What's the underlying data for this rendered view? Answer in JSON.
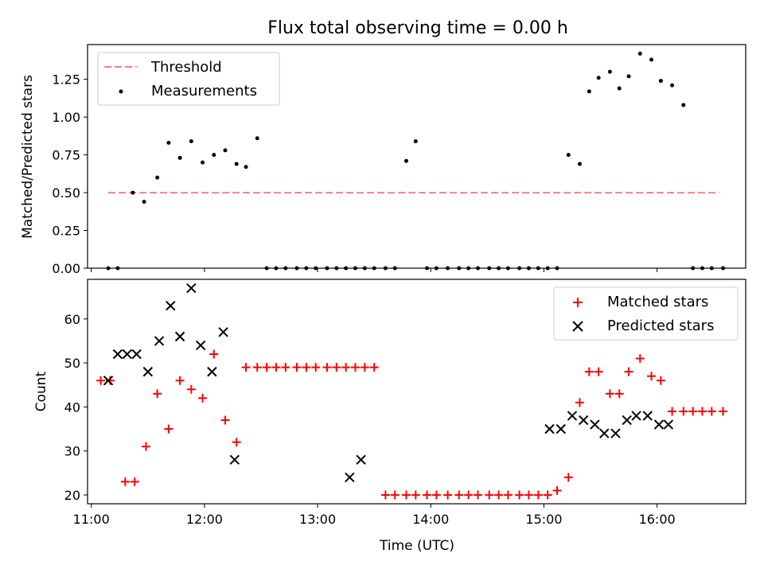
{
  "title": "Flux total observing time = 0.00 h",
  "chart_data": [
    {
      "type": "scatter",
      "ylabel": "Matched/Predicted stars",
      "ylim": [
        0,
        1.48
      ],
      "xlim": [
        "10:58",
        "16:47"
      ],
      "grid": false,
      "legend_placement": "upper-left",
      "y_ticks": [
        "0.00",
        "0.25",
        "0.50",
        "0.75",
        "1.00",
        "1.25"
      ],
      "threshold": {
        "name": "Threshold",
        "y": 0.5,
        "x_start": "11:09",
        "x_end": "16:33",
        "color": "#ff7f7f"
      },
      "series": [
        {
          "name": "Measurements",
          "color": "#000000",
          "x": [
            "11:09",
            "11:14",
            "11:22",
            "11:28",
            "11:35",
            "11:41",
            "11:47",
            "11:53",
            "11:59",
            "12:05",
            "12:11",
            "12:17",
            "12:22",
            "12:28",
            "12:33",
            "12:38",
            "12:43",
            "12:49",
            "12:54",
            "12:59",
            "13:05",
            "13:10",
            "13:15",
            "13:20",
            "13:25",
            "13:30",
            "13:36",
            "13:41",
            "13:47",
            "13:52",
            "13:58",
            "14:03",
            "14:09",
            "14:15",
            "14:20",
            "14:25",
            "14:31",
            "14:36",
            "14:41",
            "14:47",
            "14:52",
            "14:57",
            "15:02",
            "15:07",
            "15:13",
            "15:19",
            "15:24",
            "15:29",
            "15:35",
            "15:40",
            "15:45",
            "15:51",
            "15:57",
            "16:02",
            "16:08",
            "16:14",
            "16:19",
            "16:24",
            "16:29",
            "16:35"
          ],
          "y": [
            0.0,
            0.0,
            0.5,
            0.44,
            0.6,
            0.83,
            0.73,
            0.84,
            0.7,
            0.75,
            0.78,
            0.69,
            0.67,
            0.86,
            0.0,
            0.0,
            0.0,
            0.0,
            0.0,
            0.0,
            0.0,
            0.0,
            0.0,
            0.0,
            0.0,
            0.0,
            0.0,
            0.0,
            0.71,
            0.84,
            0.0,
            0.0,
            0.0,
            0.0,
            0.0,
            0.0,
            0.0,
            0.0,
            0.0,
            0.0,
            0.0,
            0.0,
            0.0,
            0.0,
            0.75,
            0.69,
            1.17,
            1.26,
            1.3,
            1.19,
            1.27,
            1.42,
            1.38,
            1.24,
            1.21,
            1.08,
            0.0,
            0.0,
            0.0,
            0.0
          ]
        }
      ]
    },
    {
      "type": "scatter",
      "xlabel": "Time (UTC)",
      "ylabel": "Count",
      "ylim": [
        18,
        69
      ],
      "xlim": [
        "10:58",
        "16:47"
      ],
      "grid": false,
      "legend_placement": "upper-right",
      "x_ticks": [
        "11:00",
        "12:00",
        "13:00",
        "14:00",
        "15:00",
        "16:00"
      ],
      "y_ticks": [
        "20",
        "30",
        "40",
        "50",
        "60"
      ],
      "series": [
        {
          "name": "Matched stars",
          "marker": "+",
          "color": "#ff0000",
          "x": [
            "11:05",
            "11:10",
            "11:18",
            "11:23",
            "11:29",
            "11:35",
            "11:41",
            "11:47",
            "11:53",
            "11:59",
            "12:05",
            "12:11",
            "12:17",
            "12:22",
            "12:28",
            "12:33",
            "12:38",
            "12:43",
            "12:49",
            "12:54",
            "12:59",
            "13:05",
            "13:10",
            "13:15",
            "13:20",
            "13:25",
            "13:30",
            "13:36",
            "13:41",
            "13:47",
            "13:52",
            "13:58",
            "14:03",
            "14:09",
            "14:15",
            "14:20",
            "14:25",
            "14:31",
            "14:36",
            "14:41",
            "14:47",
            "14:52",
            "14:57",
            "15:02",
            "15:07",
            "15:13",
            "15:19",
            "15:24",
            "15:29",
            "15:35",
            "15:40",
            "15:45",
            "15:51",
            "15:57",
            "16:02",
            "16:08",
            "16:14",
            "16:19",
            "16:24",
            "16:29",
            "16:35"
          ],
          "y": [
            46,
            46,
            23,
            23,
            31,
            43,
            35,
            46,
            44,
            42,
            52,
            37,
            32,
            49,
            49,
            49,
            49,
            49,
            49,
            49,
            49,
            49,
            49,
            49,
            49,
            49,
            49,
            20,
            20,
            20,
            20,
            20,
            20,
            20,
            20,
            20,
            20,
            20,
            20,
            20,
            20,
            20,
            20,
            20,
            21,
            24,
            41,
            48,
            48,
            43,
            43,
            48,
            51,
            47,
            46,
            39,
            39,
            39,
            39,
            39,
            39
          ]
        },
        {
          "name": "Predicted stars",
          "marker": "x",
          "color": "#000000",
          "x": [
            "11:09",
            "11:14",
            "11:19",
            "11:24",
            "11:30",
            "11:36",
            "11:42",
            "11:47",
            "11:53",
            "11:58",
            "12:04",
            "12:10",
            "12:16",
            "13:17",
            "13:23",
            "15:03",
            "15:09",
            "15:15",
            "15:21",
            "15:27",
            "15:32",
            "15:38",
            "15:44",
            "15:49",
            "15:55",
            "16:01",
            "16:06"
          ],
          "y": [
            46,
            52,
            52,
            52,
            48,
            55,
            63,
            56,
            67,
            54,
            48,
            57,
            28,
            24,
            28,
            35,
            35,
            38,
            37,
            36,
            34,
            34,
            37,
            38,
            38,
            36,
            36
          ]
        }
      ]
    }
  ]
}
